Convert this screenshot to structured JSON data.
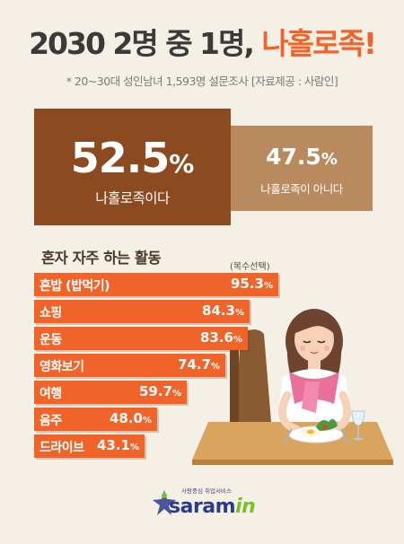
{
  "headline": {
    "part1": "2030 2명 중 1명,",
    "part2": "나홀로족!"
  },
  "survey_note": "* 20~30대 성인남녀 1,593명 설문조사   [자료제공 : 사람인]",
  "summary": {
    "yes": {
      "value": "52.5",
      "unit": "%",
      "label": "나홀로족이다"
    },
    "no": {
      "value": "47.5",
      "unit": "%",
      "label": "나홀로족이 아니다"
    }
  },
  "chart_data": {
    "type": "bar",
    "title": "혼자 자주 하는 활동",
    "note": "(복수선택)",
    "categories": [
      "혼밥 (밥먹기)",
      "쇼핑",
      "운동",
      "영화보기",
      "여행",
      "음주",
      "드라이브"
    ],
    "values": [
      95.3,
      84.3,
      83.6,
      74.7,
      59.7,
      48.0,
      43.1
    ],
    "unit": "%",
    "colors": {
      "bar": "#f0642a",
      "text": "#ffffff"
    }
  },
  "logo": {
    "tagline": "사람중심 취업서비스",
    "word": "saram",
    "suffix": "in"
  },
  "colors": {
    "accent": "#f0642a",
    "brown": "#8b4a1f",
    "tan": "#b88a5e",
    "background": "#f4f0e6"
  }
}
